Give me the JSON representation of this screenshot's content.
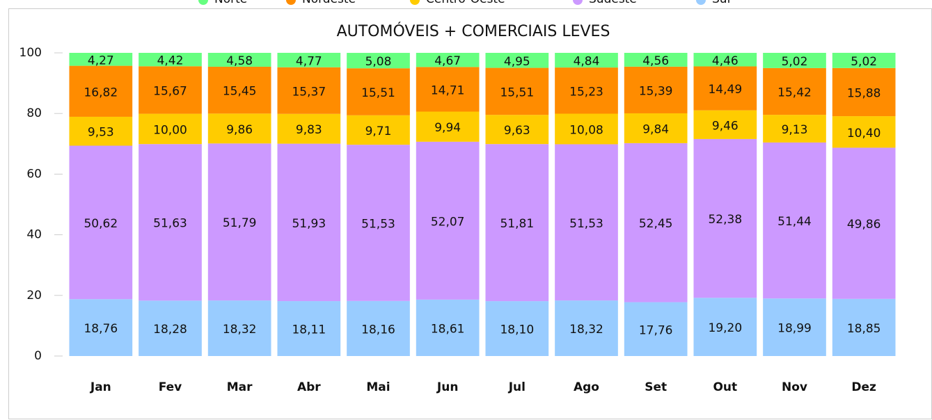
{
  "chart_data": {
    "type": "stacked_bar",
    "title": "AUTOMÓVEIS + COMERCIAIS LEVES",
    "categories": [
      "Jan",
      "Fev",
      "Mar",
      "Abr",
      "Mai",
      "Jun",
      "Jul",
      "Ago",
      "Set",
      "Out",
      "Nov",
      "Dez"
    ],
    "series": [
      {
        "name": "Norte",
        "color": "#66ff80",
        "values": [
          4.27,
          4.42,
          4.58,
          4.77,
          5.08,
          4.67,
          4.95,
          4.84,
          4.56,
          4.46,
          5.02,
          5.02
        ],
        "value_labels": [
          "4,27",
          "4,42",
          "4,58",
          "4,77",
          "5,08",
          "4,67",
          "4,95",
          "4,84",
          "4,56",
          "4,46",
          "5,02",
          "5,02"
        ]
      },
      {
        "name": "Nordeste",
        "color": "#ff8c00",
        "values": [
          16.82,
          15.67,
          15.45,
          15.37,
          15.51,
          14.71,
          15.51,
          15.23,
          15.39,
          14.49,
          15.42,
          15.88
        ],
        "value_labels": [
          "16,82",
          "15,67",
          "15,45",
          "15,37",
          "15,51",
          "14,71",
          "15,51",
          "15,23",
          "15,39",
          "14,49",
          "15,42",
          "15,88"
        ]
      },
      {
        "name": "Centro-Oeste",
        "color": "#ffcc00",
        "values": [
          9.53,
          10.0,
          9.86,
          9.83,
          9.71,
          9.94,
          9.63,
          10.08,
          9.84,
          9.46,
          9.13,
          10.4
        ],
        "value_labels": [
          "9,53",
          "10,00",
          "9,86",
          "9,83",
          "9,71",
          "9,94",
          "9,63",
          "10,08",
          "9,84",
          "9,46",
          "9,13",
          "10,40"
        ]
      },
      {
        "name": "Sudeste",
        "color": "#cc99ff",
        "values": [
          50.62,
          51.63,
          51.79,
          51.93,
          51.53,
          52.07,
          51.81,
          51.53,
          52.45,
          52.38,
          51.44,
          49.86
        ],
        "value_labels": [
          "50,62",
          "51,63",
          "51,79",
          "51,93",
          "51,53",
          "52,07",
          "51,81",
          "51,53",
          "52,45",
          "52,38",
          "51,44",
          "49,86"
        ]
      },
      {
        "name": "Sul",
        "color": "#99ccff",
        "values": [
          18.76,
          18.28,
          18.32,
          18.11,
          18.16,
          18.61,
          18.1,
          18.32,
          17.76,
          19.2,
          18.99,
          18.85
        ],
        "value_labels": [
          "18,76",
          "18,28",
          "18,32",
          "18,11",
          "18,16",
          "18,61",
          "18,10",
          "18,32",
          "17,76",
          "19,20",
          "18,99",
          "18,85"
        ]
      }
    ],
    "ylim": [
      0,
      100
    ],
    "yticks": [
      0,
      20,
      40,
      60,
      80,
      100
    ],
    "legend": "top"
  }
}
